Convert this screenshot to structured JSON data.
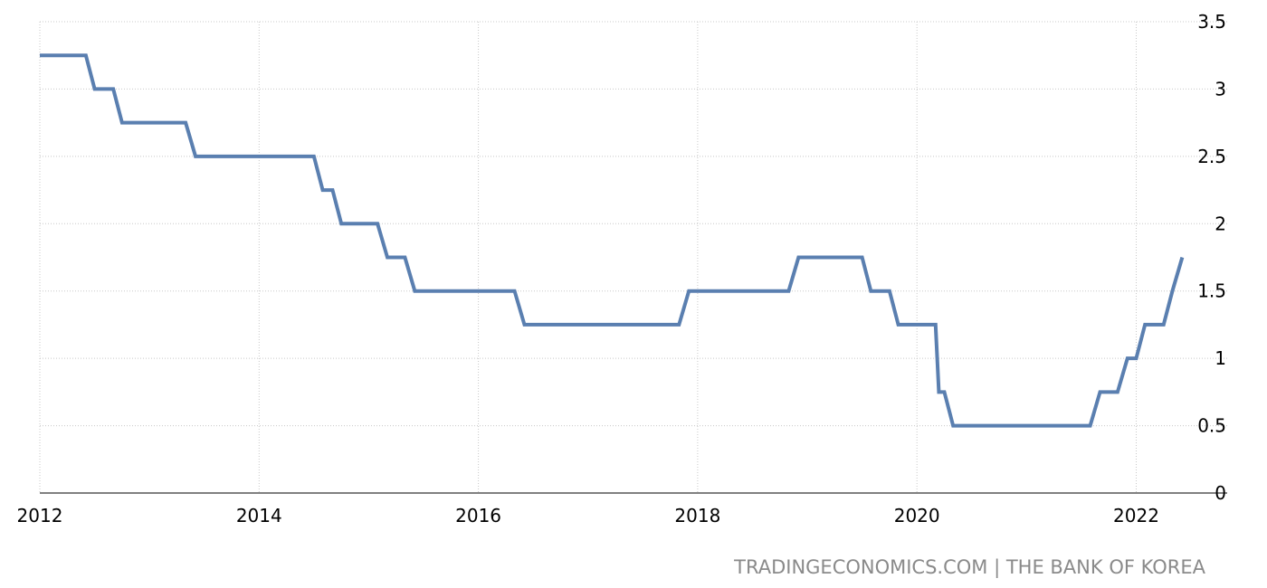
{
  "chart_data": {
    "type": "line",
    "title": "",
    "xlabel": "",
    "ylabel": "",
    "xlim": [
      2012.0,
      2022.45
    ],
    "ylim": [
      0,
      3.5
    ],
    "grid": true,
    "x_ticks": [
      2012,
      2014,
      2016,
      2018,
      2020,
      2022
    ],
    "x_tick_labels": [
      "2012",
      "2014",
      "2016",
      "2018",
      "2020",
      "2022"
    ],
    "y_ticks": [
      0,
      0.5,
      1,
      1.5,
      2,
      2.5,
      3,
      3.5
    ],
    "y_tick_labels": [
      "0",
      "0.5",
      "1",
      "1.5",
      "2",
      "2.5",
      "3",
      "3.5"
    ],
    "series": [
      {
        "color": "#5a7fb0",
        "x": [
          2012.0,
          2012.42,
          2012.5,
          2012.67,
          2012.75,
          2013.08,
          2013.33,
          2013.42,
          2014.5,
          2014.58,
          2014.67,
          2014.75,
          2014.83,
          2015.08,
          2015.17,
          2015.33,
          2015.42,
          2015.5,
          2016.33,
          2016.42,
          2016.5,
          2017.83,
          2017.92,
          2018.0,
          2018.83,
          2018.92,
          2019.0,
          2019.5,
          2019.58,
          2019.75,
          2019.83,
          2020.17,
          2020.2,
          2020.25,
          2020.33,
          2020.42,
          2021.58,
          2021.67,
          2021.83,
          2021.92,
          2022.0,
          2022.08,
          2022.17,
          2022.25,
          2022.33,
          2022.42
        ],
        "y": [
          3.25,
          3.25,
          3.0,
          3.0,
          2.75,
          2.75,
          2.75,
          2.5,
          2.5,
          2.25,
          2.25,
          2.0,
          2.0,
          2.0,
          1.75,
          1.75,
          1.5,
          1.5,
          1.5,
          1.25,
          1.25,
          1.25,
          1.5,
          1.5,
          1.5,
          1.75,
          1.75,
          1.75,
          1.5,
          1.5,
          1.25,
          1.25,
          0.75,
          0.75,
          0.5,
          0.5,
          0.5,
          0.75,
          0.75,
          1.0,
          1.0,
          1.25,
          1.25,
          1.25,
          1.5,
          1.75
        ]
      }
    ]
  },
  "attribution": "TRADINGECONOMICS.COM | THE BANK OF KOREA"
}
